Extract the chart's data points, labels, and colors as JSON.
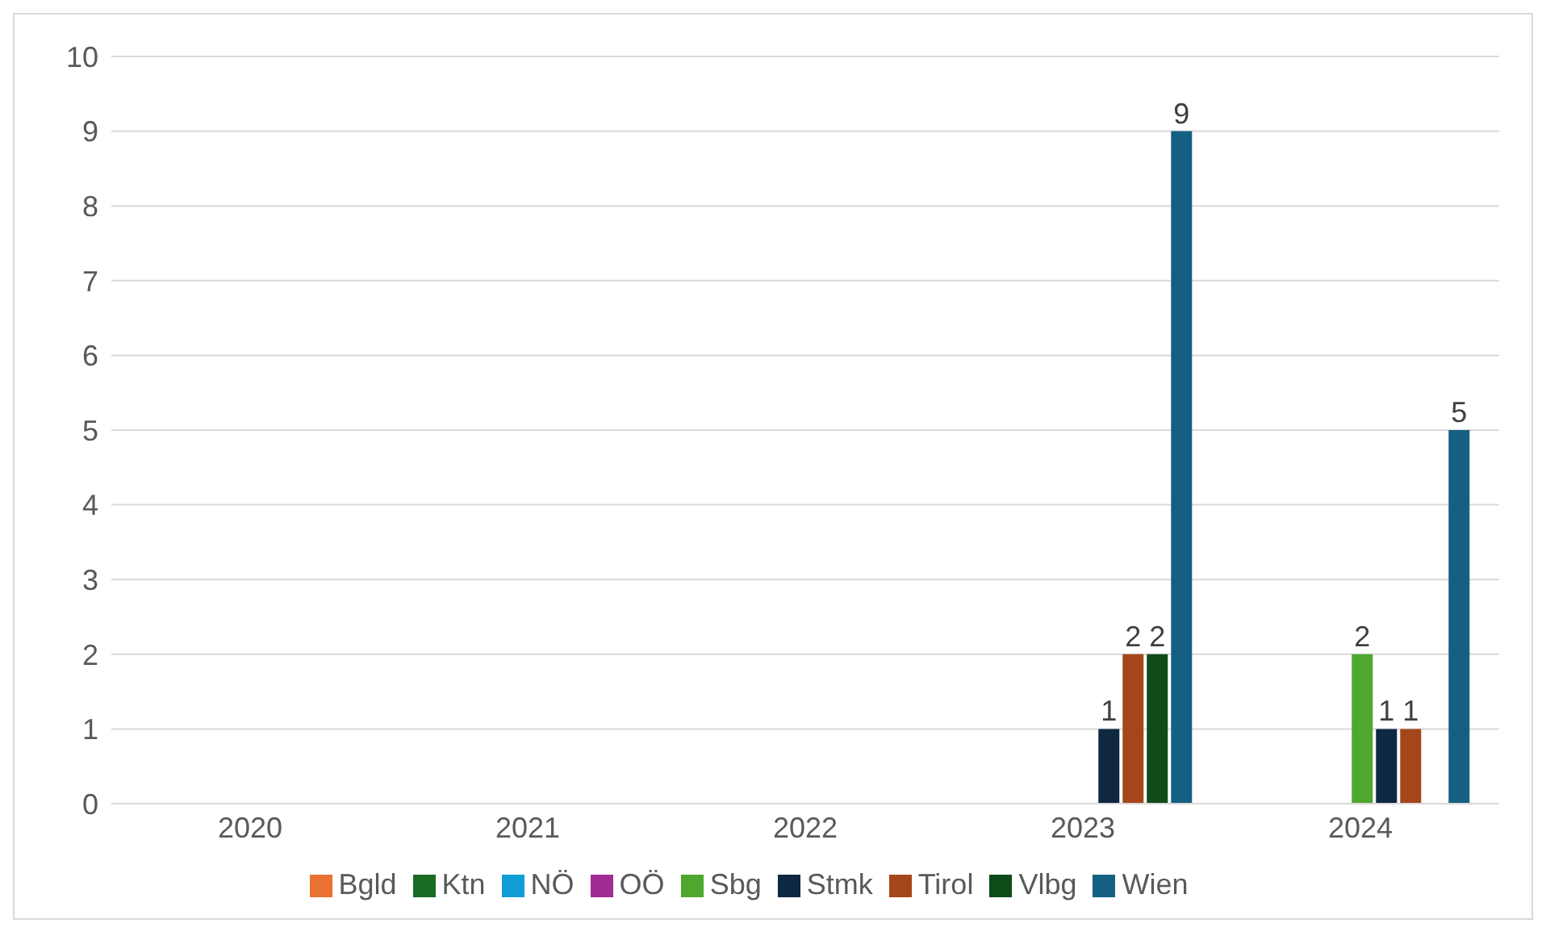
{
  "chart_data": {
    "type": "bar",
    "categories": [
      "2020",
      "2021",
      "2022",
      "2023",
      "2024"
    ],
    "series": [
      {
        "name": "Bgld",
        "color": "#e97132",
        "values": [
          null,
          null,
          null,
          null,
          null
        ]
      },
      {
        "name": "Ktn",
        "color": "#196b24",
        "values": [
          null,
          null,
          null,
          null,
          null
        ]
      },
      {
        "name": "NÖ",
        "color": "#0f9ed5",
        "values": [
          null,
          null,
          null,
          null,
          null
        ]
      },
      {
        "name": "OÖ",
        "color": "#a02b93",
        "values": [
          null,
          null,
          null,
          null,
          null
        ]
      },
      {
        "name": "Sbg",
        "color": "#4ea72e",
        "values": [
          null,
          null,
          null,
          null,
          2
        ]
      },
      {
        "name": "Stmk",
        "color": "#0e2841",
        "values": [
          null,
          null,
          null,
          1,
          1
        ]
      },
      {
        "name": "Tirol",
        "color": "#a5461a",
        "values": [
          null,
          null,
          null,
          2,
          1
        ]
      },
      {
        "name": "Vlbg",
        "color": "#0f4a19",
        "values": [
          null,
          null,
          null,
          2,
          null
        ]
      },
      {
        "name": "Wien",
        "color": "#156082",
        "values": [
          null,
          null,
          null,
          9,
          5
        ]
      }
    ],
    "ylim": [
      0,
      10
    ],
    "yticks": [
      0,
      1,
      2,
      3,
      4,
      5,
      6,
      7,
      8,
      9,
      10
    ],
    "grid": "y",
    "legend": "bottom",
    "data_labels": true
  }
}
